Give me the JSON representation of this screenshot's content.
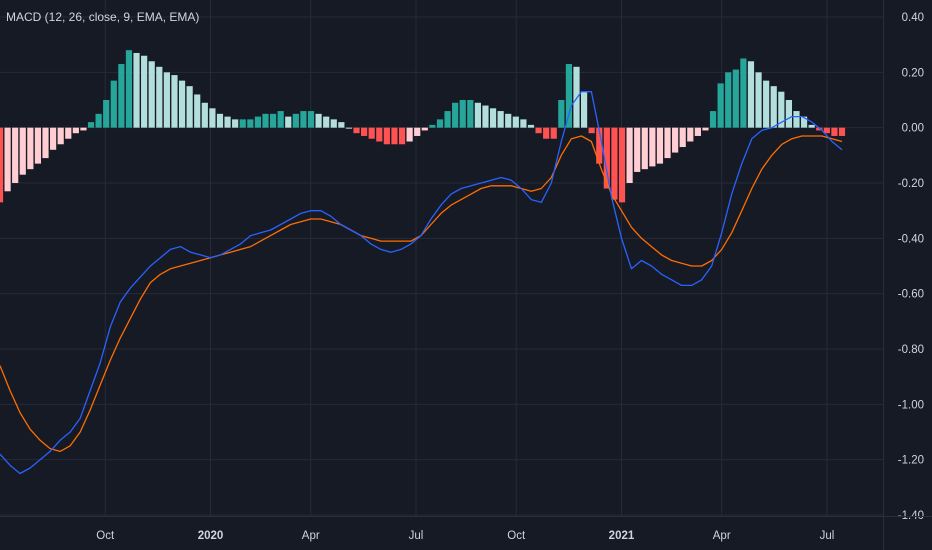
{
  "indicator_title": "MACD (12, 26, close, 9, EMA, EMA)",
  "colors": {
    "background": "#161a25",
    "grid": "#262b38",
    "text": "#d1d4dc",
    "macd_line": "#2962ff",
    "signal_line": "#ff6d00",
    "hist_pos_rising": "#26a69a",
    "hist_pos_falling": "#b2dfdb",
    "hist_neg_falling": "#ff5252",
    "hist_neg_rising": "#ffcdd2"
  },
  "chart_data": {
    "type": "line",
    "title": "MACD (12, 26, close, 9, EMA, EMA)",
    "ylim": [
      -1.4,
      0.4
    ],
    "y_ticks": [
      "0.40",
      "0.20",
      "0.00",
      "-0.20",
      "-0.40",
      "-0.60",
      "-0.80",
      "-1.00",
      "-1.20",
      "-1.40"
    ],
    "y_tick_values": [
      0.4,
      0.2,
      0.0,
      -0.2,
      -0.4,
      -0.6,
      -0.8,
      -1.0,
      -1.2,
      -1.4
    ],
    "x_range": [
      0,
      168
    ],
    "x_ticks": [
      {
        "label": "Oct",
        "x": 21,
        "bold": false
      },
      {
        "label": "2020",
        "x": 42,
        "bold": true
      },
      {
        "label": "Apr",
        "x": 62,
        "bold": false
      },
      {
        "label": "Jul",
        "x": 83,
        "bold": false
      },
      {
        "label": "Oct",
        "x": 103,
        "bold": false
      },
      {
        "label": "2021",
        "x": 124,
        "bold": true
      },
      {
        "label": "Apr",
        "x": 144,
        "bold": false
      },
      {
        "label": "Jul",
        "x": 165,
        "bold": false
      }
    ],
    "grid": true,
    "series": [
      {
        "role": "macd",
        "points": [
          [
            0,
            -1.18
          ],
          [
            2,
            -1.22
          ],
          [
            4,
            -1.25
          ],
          [
            6,
            -1.23
          ],
          [
            8,
            -1.2
          ],
          [
            10,
            -1.17
          ],
          [
            12,
            -1.13
          ],
          [
            14,
            -1.1
          ],
          [
            16,
            -1.05
          ],
          [
            18,
            -0.95
          ],
          [
            20,
            -0.85
          ],
          [
            22,
            -0.72
          ],
          [
            24,
            -0.63
          ],
          [
            26,
            -0.58
          ],
          [
            28,
            -0.54
          ],
          [
            30,
            -0.5
          ],
          [
            32,
            -0.47
          ],
          [
            34,
            -0.44
          ],
          [
            36,
            -0.43
          ],
          [
            38,
            -0.45
          ],
          [
            40,
            -0.46
          ],
          [
            42,
            -0.47
          ],
          [
            44,
            -0.46
          ],
          [
            46,
            -0.44
          ],
          [
            48,
            -0.42
          ],
          [
            50,
            -0.39
          ],
          [
            52,
            -0.38
          ],
          [
            54,
            -0.37
          ],
          [
            56,
            -0.35
          ],
          [
            58,
            -0.33
          ],
          [
            60,
            -0.31
          ],
          [
            62,
            -0.3
          ],
          [
            64,
            -0.3
          ],
          [
            66,
            -0.32
          ],
          [
            68,
            -0.35
          ],
          [
            70,
            -0.37
          ],
          [
            72,
            -0.39
          ],
          [
            74,
            -0.42
          ],
          [
            76,
            -0.44
          ],
          [
            78,
            -0.45
          ],
          [
            80,
            -0.44
          ],
          [
            82,
            -0.42
          ],
          [
            84,
            -0.39
          ],
          [
            86,
            -0.33
          ],
          [
            88,
            -0.28
          ],
          [
            90,
            -0.24
          ],
          [
            92,
            -0.22
          ],
          [
            94,
            -0.21
          ],
          [
            96,
            -0.2
          ],
          [
            98,
            -0.19
          ],
          [
            100,
            -0.18
          ],
          [
            102,
            -0.19
          ],
          [
            104,
            -0.22
          ],
          [
            106,
            -0.26
          ],
          [
            108,
            -0.27
          ],
          [
            110,
            -0.2
          ],
          [
            112,
            -0.05
          ],
          [
            114,
            0.08
          ],
          [
            116,
            0.13
          ],
          [
            118,
            0.13
          ],
          [
            120,
            -0.05
          ],
          [
            122,
            -0.25
          ],
          [
            124,
            -0.4
          ],
          [
            126,
            -0.51
          ],
          [
            128,
            -0.48
          ],
          [
            130,
            -0.5
          ],
          [
            132,
            -0.53
          ],
          [
            134,
            -0.55
          ],
          [
            136,
            -0.57
          ],
          [
            138,
            -0.57
          ],
          [
            140,
            -0.55
          ],
          [
            142,
            -0.5
          ],
          [
            144,
            -0.38
          ],
          [
            146,
            -0.24
          ],
          [
            148,
            -0.13
          ],
          [
            150,
            -0.04
          ],
          [
            152,
            -0.01
          ],
          [
            154,
            0.0
          ],
          [
            156,
            0.02
          ],
          [
            158,
            0.04
          ],
          [
            160,
            0.04
          ],
          [
            162,
            0.02
          ],
          [
            164,
            -0.01
          ],
          [
            166,
            -0.05
          ],
          [
            168,
            -0.08
          ]
        ]
      },
      {
        "role": "signal",
        "points": [
          [
            0,
            -0.86
          ],
          [
            2,
            -0.95
          ],
          [
            4,
            -1.03
          ],
          [
            6,
            -1.09
          ],
          [
            8,
            -1.13
          ],
          [
            10,
            -1.16
          ],
          [
            12,
            -1.17
          ],
          [
            14,
            -1.15
          ],
          [
            16,
            -1.1
          ],
          [
            18,
            -1.02
          ],
          [
            20,
            -0.93
          ],
          [
            22,
            -0.84
          ],
          [
            24,
            -0.76
          ],
          [
            26,
            -0.69
          ],
          [
            28,
            -0.62
          ],
          [
            30,
            -0.56
          ],
          [
            32,
            -0.53
          ],
          [
            34,
            -0.51
          ],
          [
            36,
            -0.5
          ],
          [
            38,
            -0.49
          ],
          [
            40,
            -0.48
          ],
          [
            42,
            -0.47
          ],
          [
            44,
            -0.46
          ],
          [
            46,
            -0.45
          ],
          [
            48,
            -0.44
          ],
          [
            50,
            -0.43
          ],
          [
            52,
            -0.41
          ],
          [
            54,
            -0.39
          ],
          [
            56,
            -0.37
          ],
          [
            58,
            -0.35
          ],
          [
            60,
            -0.34
          ],
          [
            62,
            -0.33
          ],
          [
            64,
            -0.33
          ],
          [
            66,
            -0.34
          ],
          [
            68,
            -0.35
          ],
          [
            70,
            -0.37
          ],
          [
            72,
            -0.39
          ],
          [
            74,
            -0.4
          ],
          [
            76,
            -0.41
          ],
          [
            78,
            -0.41
          ],
          [
            80,
            -0.41
          ],
          [
            82,
            -0.41
          ],
          [
            84,
            -0.39
          ],
          [
            86,
            -0.35
          ],
          [
            88,
            -0.31
          ],
          [
            90,
            -0.28
          ],
          [
            92,
            -0.26
          ],
          [
            94,
            -0.24
          ],
          [
            96,
            -0.22
          ],
          [
            98,
            -0.21
          ],
          [
            100,
            -0.21
          ],
          [
            102,
            -0.21
          ],
          [
            104,
            -0.22
          ],
          [
            106,
            -0.23
          ],
          [
            108,
            -0.22
          ],
          [
            110,
            -0.18
          ],
          [
            112,
            -0.1
          ],
          [
            114,
            -0.04
          ],
          [
            116,
            -0.03
          ],
          [
            118,
            -0.05
          ],
          [
            120,
            -0.15
          ],
          [
            122,
            -0.24
          ],
          [
            124,
            -0.3
          ],
          [
            126,
            -0.36
          ],
          [
            128,
            -0.4
          ],
          [
            130,
            -0.43
          ],
          [
            132,
            -0.46
          ],
          [
            134,
            -0.48
          ],
          [
            136,
            -0.49
          ],
          [
            138,
            -0.5
          ],
          [
            140,
            -0.5
          ],
          [
            142,
            -0.48
          ],
          [
            144,
            -0.44
          ],
          [
            146,
            -0.38
          ],
          [
            148,
            -0.3
          ],
          [
            150,
            -0.22
          ],
          [
            152,
            -0.15
          ],
          [
            154,
            -0.1
          ],
          [
            156,
            -0.06
          ],
          [
            158,
            -0.04
          ],
          [
            160,
            -0.03
          ],
          [
            162,
            -0.03
          ],
          [
            164,
            -0.03
          ],
          [
            166,
            -0.04
          ],
          [
            168,
            -0.05
          ]
        ]
      },
      {
        "role": "histogram",
        "type": "bar",
        "values": [
          -0.27,
          -0.23,
          -0.2,
          -0.17,
          -0.15,
          -0.13,
          -0.11,
          -0.08,
          -0.06,
          -0.04,
          -0.02,
          -0.01,
          0.02,
          0.05,
          0.1,
          0.17,
          0.23,
          0.28,
          0.27,
          0.26,
          0.24,
          0.22,
          0.2,
          0.19,
          0.17,
          0.15,
          0.12,
          0.09,
          0.07,
          0.05,
          0.04,
          0.03,
          0.03,
          0.03,
          0.04,
          0.05,
          0.05,
          0.06,
          0.04,
          0.05,
          0.06,
          0.06,
          0.05,
          0.04,
          0.03,
          0.02,
          0.0,
          -0.02,
          -0.03,
          -0.04,
          -0.05,
          -0.06,
          -0.06,
          -0.06,
          -0.05,
          -0.03,
          -0.01,
          0.01,
          0.03,
          0.06,
          0.09,
          0.1,
          0.1,
          0.09,
          0.08,
          0.07,
          0.06,
          0.05,
          0.04,
          0.03,
          0.01,
          -0.02,
          -0.04,
          -0.04,
          0.1,
          0.23,
          0.22,
          0.13,
          -0.02,
          -0.13,
          -0.22,
          -0.26,
          -0.27,
          -0.2,
          -0.16,
          -0.15,
          -0.14,
          -0.13,
          -0.11,
          -0.09,
          -0.07,
          -0.05,
          -0.03,
          -0.01,
          0.06,
          0.16,
          0.2,
          0.21,
          0.25,
          0.24,
          0.2,
          0.17,
          0.15,
          0.13,
          0.1,
          0.06,
          0.04,
          0.01,
          -0.01,
          -0.02,
          -0.03,
          -0.03
        ]
      }
    ],
    "histogram_x_range": [
      0,
      168
    ]
  }
}
